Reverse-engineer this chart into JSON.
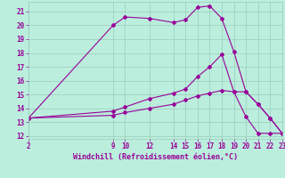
{
  "xlabel": "Windchill (Refroidissement éolien,°C)",
  "line1_x": [
    2,
    9,
    10,
    12,
    14,
    15,
    16,
    17,
    18,
    19,
    20,
    21,
    22,
    23
  ],
  "line1_y": [
    13.3,
    20.0,
    20.6,
    20.5,
    20.2,
    20.4,
    21.3,
    21.4,
    20.5,
    18.1,
    15.2,
    14.3,
    13.3,
    12.2
  ],
  "line2_x": [
    2,
    9,
    10,
    12,
    14,
    15,
    16,
    17,
    18,
    19,
    20,
    21,
    22,
    23
  ],
  "line2_y": [
    13.3,
    13.8,
    14.1,
    14.7,
    15.1,
    15.4,
    16.3,
    17.0,
    17.9,
    15.2,
    13.4,
    12.2,
    12.2,
    12.2
  ],
  "line3_x": [
    2,
    9,
    10,
    12,
    14,
    15,
    16,
    17,
    18,
    19,
    20,
    21,
    22,
    23
  ],
  "line3_y": [
    13.3,
    13.5,
    13.7,
    14.0,
    14.3,
    14.6,
    14.9,
    15.1,
    15.3,
    15.2,
    15.2,
    14.3,
    13.3,
    12.2
  ],
  "color": "#990099",
  "bg_color": "#bbeedd",
  "grid_color": "#99ccbb",
  "xticks": [
    2,
    9,
    10,
    12,
    14,
    15,
    16,
    17,
    18,
    19,
    20,
    21,
    22,
    23
  ],
  "yticks": [
    12,
    13,
    14,
    15,
    16,
    17,
    18,
    19,
    20,
    21
  ],
  "xlim": [
    2,
    23
  ],
  "ylim": [
    11.8,
    21.7
  ],
  "tick_fontsize": 5.5,
  "xlabel_fontsize": 6.0,
  "marker": "D",
  "markersize": 2.0,
  "linewidth": 0.8
}
